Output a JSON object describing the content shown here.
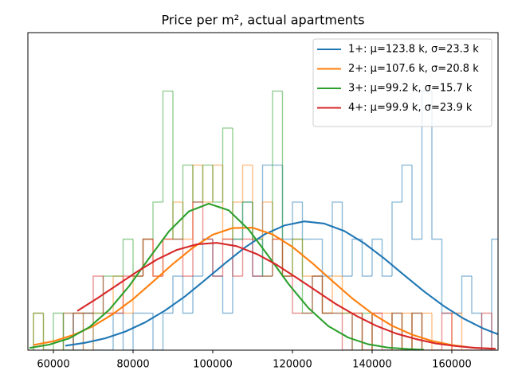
{
  "chart_data": {
    "type": "histogram",
    "title": "Price per m², actual apartments",
    "xlim": [
      53600,
      171600
    ],
    "xticks": [
      60000,
      80000,
      100000,
      120000,
      140000,
      160000
    ],
    "ylim": [
      0,
      8.58
    ],
    "legend": "upper right",
    "series": [
      {
        "name": "1+: μ=123.8 k, σ=23.3 k",
        "color": "#1f77b4",
        "bins": [
          62500,
          65000,
          67500,
          70000,
          72500,
          75000,
          77500,
          80000,
          82500,
          85000,
          87500,
          90000,
          92500,
          95000,
          97500,
          100000,
          102500,
          105000,
          107500,
          110000,
          112500,
          115000,
          117500,
          120000,
          122500,
          125000,
          127500,
          130000,
          132500,
          135000,
          137500,
          140000,
          142500,
          145000,
          147500,
          150000,
          152500,
          155000,
          157500,
          160000,
          162500,
          165000,
          167500,
          170000,
          172500
        ],
        "values": [
          1,
          0,
          1,
          0,
          0,
          1,
          0,
          1,
          1,
          0,
          1,
          2,
          1,
          2,
          3,
          2,
          1,
          3,
          4,
          2,
          5,
          5,
          3,
          4,
          3,
          3,
          2,
          4,
          2,
          3,
          2,
          3,
          2,
          4,
          5,
          3,
          7,
          3,
          1,
          1,
          2,
          1,
          0,
          3
        ],
        "fit_x": [
          63000,
          68000,
          73000,
          78000,
          83000,
          88000,
          93000,
          98000,
          103000,
          108000,
          113000,
          118000,
          123000,
          128000,
          133000,
          138000,
          143000,
          148000,
          153000,
          158000,
          163000,
          168000,
          171600
        ],
        "fit_values": [
          0.12,
          0.2,
          0.32,
          0.5,
          0.75,
          1.07,
          1.45,
          1.89,
          2.34,
          2.77,
          3.13,
          3.37,
          3.48,
          3.42,
          3.22,
          2.89,
          2.48,
          2.03,
          1.59,
          1.19,
          0.85,
          0.58,
          0.43
        ]
      },
      {
        "name": "2+: μ=107.6 k, σ=20.8 k",
        "color": "#ff7f0e",
        "bins": [
          55000,
          57500,
          60000,
          62500,
          65000,
          67500,
          70000,
          72500,
          75000,
          77500,
          80000,
          82500,
          85000,
          87500,
          90000,
          92500,
          95000,
          97500,
          100000,
          102500,
          105000,
          107500,
          110000,
          112500,
          115000,
          117500,
          120000,
          122500,
          125000,
          127500,
          130000,
          132500,
          135000,
          137500,
          140000,
          142500,
          145000,
          147500,
          150000,
          152500,
          155000,
          157500,
          160000,
          162500,
          165000
        ],
        "values": [
          1,
          0,
          0,
          1,
          1,
          0,
          1,
          1,
          2,
          1,
          2,
          3,
          2,
          3,
          4,
          3,
          5,
          4,
          5,
          3,
          4,
          5,
          3,
          4,
          3,
          2,
          3,
          2,
          2,
          1,
          2,
          1,
          1,
          0,
          1,
          1,
          0,
          1,
          0,
          1,
          0,
          0,
          1,
          0
        ],
        "fit_x": [
          55000,
          60000,
          65000,
          70000,
          75000,
          80000,
          85000,
          90000,
          95000,
          100000,
          105000,
          110000,
          115000,
          120000,
          125000,
          130000,
          135000,
          140000,
          145000,
          150000,
          155000,
          160000,
          165000,
          170000
        ],
        "fit_values": [
          0.14,
          0.24,
          0.41,
          0.65,
          0.98,
          1.38,
          1.85,
          2.33,
          2.77,
          3.12,
          3.3,
          3.31,
          3.13,
          2.79,
          2.35,
          1.87,
          1.4,
          0.99,
          0.66,
          0.42,
          0.25,
          0.14,
          0.07,
          0.04
        ]
      },
      {
        "name": "3+: μ=99.2 k, σ=15.7 k",
        "color": "#2ca02c",
        "bins": [
          55000,
          57500,
          60000,
          62500,
          65000,
          67500,
          70000,
          72500,
          75000,
          77500,
          80000,
          82500,
          85000,
          87500,
          90000,
          92500,
          95000,
          97500,
          100000,
          102500,
          105000,
          107500,
          110000,
          112500,
          115000,
          117500,
          120000,
          122500,
          125000,
          127500,
          130000,
          132500,
          135000,
          137500,
          140000,
          142500,
          145000,
          147500,
          150000,
          152500
        ],
        "values": [
          1,
          0,
          1,
          0,
          1,
          1,
          1,
          2,
          2,
          3,
          2,
          3,
          4,
          7,
          3,
          5,
          4,
          5,
          4,
          6,
          3,
          4,
          3,
          2,
          7,
          2,
          3,
          1,
          2,
          1,
          1,
          1,
          0,
          1,
          0,
          0,
          1,
          0,
          1
        ],
        "fit_x": [
          54000,
          59000,
          64000,
          69000,
          74000,
          79000,
          84000,
          89000,
          94000,
          99000,
          104000,
          109000,
          114000,
          119000,
          124000,
          129000,
          134000,
          139000,
          144000,
          149000,
          153000
        ],
        "fit_values": [
          0.06,
          0.15,
          0.32,
          0.62,
          1.09,
          1.73,
          2.48,
          3.21,
          3.75,
          3.96,
          3.78,
          3.26,
          2.54,
          1.79,
          1.14,
          0.65,
          0.34,
          0.16,
          0.07,
          0.03,
          0.01
        ]
      },
      {
        "name": "4+: μ=99.9 k, σ=23.9 k",
        "color": "#d62728",
        "bins": [
          65000,
          67500,
          70000,
          72500,
          75000,
          77500,
          80000,
          82500,
          85000,
          87500,
          90000,
          92500,
          95000,
          97500,
          100000,
          102500,
          105000,
          107500,
          110000,
          112500,
          115000,
          117500,
          120000,
          122500,
          125000,
          127500,
          130000,
          132500,
          135000,
          137500,
          140000,
          142500,
          145000,
          147500,
          150000,
          152500,
          155000,
          157500,
          160000,
          162500,
          165000,
          167500,
          170000
        ],
        "values": [
          1,
          1,
          2,
          1,
          1,
          2,
          2,
          3,
          2,
          3,
          3,
          2,
          4,
          3,
          2,
          3,
          2,
          3,
          2,
          2,
          3,
          2,
          1,
          1,
          2,
          1,
          1,
          0,
          1,
          0,
          1,
          0,
          1,
          0,
          1,
          0,
          0,
          1,
          0,
          0,
          0,
          1
        ],
        "fit_x": [
          66000,
          71000,
          76000,
          81000,
          86000,
          91000,
          96000,
          101000,
          106000,
          111000,
          116000,
          121000,
          126000,
          131000,
          136000,
          141000,
          146000,
          151000,
          156000,
          161000,
          166000,
          171000
        ],
        "fit_values": [
          1.06,
          1.4,
          1.76,
          2.12,
          2.45,
          2.71,
          2.86,
          2.9,
          2.81,
          2.6,
          2.31,
          1.96,
          1.6,
          1.24,
          0.93,
          0.66,
          0.45,
          0.3,
          0.18,
          0.11,
          0.06,
          0.04
        ]
      }
    ]
  }
}
